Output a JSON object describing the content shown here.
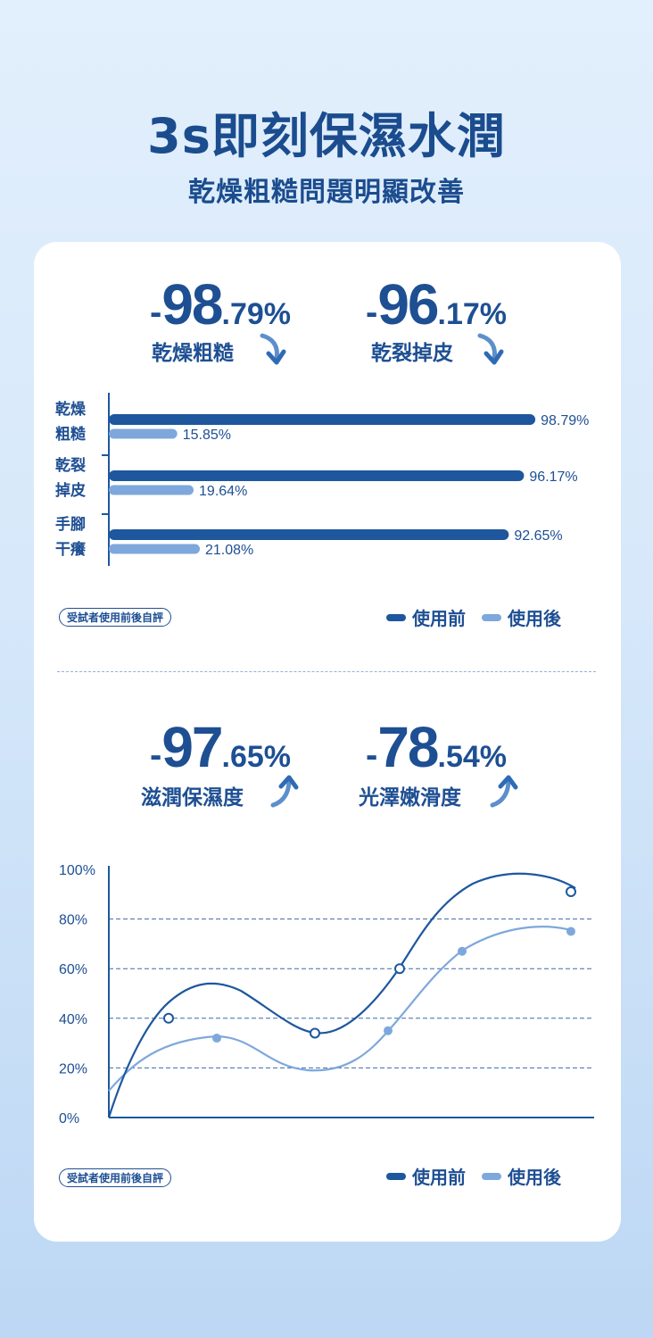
{
  "header": {
    "title": "3s即刻保濕水潤",
    "subtitle": "乾燥粗糙問題明顯改善"
  },
  "stats_top": [
    {
      "dash": "-",
      "big": "98",
      "small": ".79%",
      "label": "乾燥粗糙",
      "arrow": "down-arrow-icon"
    },
    {
      "dash": "-",
      "big": "96",
      "small": ".17%",
      "label": "乾裂掉皮",
      "arrow": "down-arrow-icon"
    }
  ],
  "stats_bottom": [
    {
      "dash": "-",
      "big": "97",
      "small": ".65%",
      "label": "滋潤保濕度",
      "arrow": "up-arrow-icon"
    },
    {
      "dash": "-",
      "big": "78",
      "small": ".54%",
      "label": "光澤嫩滑度",
      "arrow": "up-arrow-icon"
    }
  ],
  "note": "受試者使用前後自評",
  "legend": {
    "before": "使用前",
    "after": "使用後"
  },
  "colors": {
    "before": "#1e579e",
    "after": "#7ea8dc",
    "text": "#1e4f93"
  },
  "chart_data": [
    {
      "type": "bar",
      "orientation": "horizontal",
      "categories": [
        [
          "乾燥",
          "粗糙"
        ],
        [
          "乾裂",
          "掉皮"
        ],
        [
          "手腳",
          "干癢"
        ]
      ],
      "series": [
        {
          "name": "使用前",
          "values": [
            98.79,
            96.17,
            92.65
          ],
          "labels": [
            "98.79%",
            "96.17%",
            "92.65%"
          ]
        },
        {
          "name": "使用後",
          "values": [
            15.85,
            19.64,
            21.08
          ],
          "labels": [
            "15.85%",
            "19.64%",
            "21.08%"
          ]
        }
      ],
      "xlim": [
        0,
        100
      ],
      "legend_position": "bottom-right"
    },
    {
      "type": "line",
      "yticks": [
        "100%",
        "80%",
        "60%",
        "40%",
        "20%",
        "0%"
      ],
      "ylim": [
        0,
        100
      ],
      "grid": true,
      "series": [
        {
          "name": "使用前",
          "points": [
            [
              1,
              40
            ],
            [
              3,
              34
            ],
            [
              4,
              60
            ],
            [
              6,
              91
            ]
          ]
        },
        {
          "name": "使用後",
          "points": [
            [
              2,
              32
            ],
            [
              4,
              35
            ],
            [
              5,
              67
            ],
            [
              6,
              75
            ]
          ]
        }
      ],
      "legend_position": "bottom-right"
    }
  ]
}
